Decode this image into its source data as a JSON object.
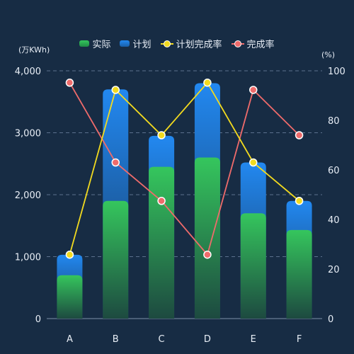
{
  "chart_data": {
    "type": "bar",
    "categories": [
      "A",
      "B",
      "C",
      "D",
      "E",
      "F"
    ],
    "y_left": {
      "unit": "(万KWh)",
      "ylim": [
        0,
        4000
      ],
      "ticks": [
        "0",
        "1,000",
        "2,000",
        "3,000",
        "4,000"
      ],
      "tick_values": [
        0,
        1000,
        2000,
        3000,
        4000
      ]
    },
    "y_right": {
      "unit": "(%)",
      "ylim": [
        0,
        100
      ],
      "ticks": [
        "0",
        "20",
        "40",
        "60",
        "80",
        "100"
      ],
      "tick_values": [
        0,
        20,
        40,
        60,
        80,
        100
      ]
    },
    "grid": true,
    "legend_position": "top-center",
    "series": [
      {
        "name": "实际",
        "type": "bar",
        "axis": "left",
        "values": [
          700,
          1900,
          2450,
          2600,
          1700,
          1430
        ],
        "color_top": "#35c65d",
        "color_bottom": "#1d4a40"
      },
      {
        "name": "计划",
        "type": "bar",
        "axis": "left",
        "values": [
          1030,
          3700,
          2950,
          3800,
          2520,
          1900
        ],
        "color_top": "#2288f0",
        "color_bottom": "#173a62"
      },
      {
        "name": "计划完成率",
        "type": "line",
        "axis": "right",
        "values": [
          25.8,
          92.3,
          74,
          95.2,
          63,
          47.5
        ],
        "color": "#f2da1f"
      },
      {
        "name": "完成率",
        "type": "line",
        "axis": "right",
        "values": [
          95.2,
          63,
          47.5,
          25.8,
          92.3,
          74
        ],
        "color": "#ef6b6b"
      }
    ]
  }
}
